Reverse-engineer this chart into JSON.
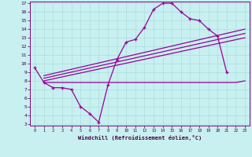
{
  "background_color": "#c8f0f0",
  "grid_color": "#aadddd",
  "line_color": "#990099",
  "xlabel": "Windchill (Refroidissement éolien,°C)",
  "xlim": [
    0,
    23
  ],
  "ylim": [
    3,
    17
  ],
  "xticks": [
    0,
    1,
    2,
    3,
    4,
    5,
    6,
    7,
    8,
    9,
    10,
    11,
    12,
    13,
    14,
    15,
    16,
    17,
    18,
    19,
    20,
    21,
    22,
    23
  ],
  "yticks": [
    3,
    4,
    5,
    6,
    7,
    8,
    9,
    10,
    11,
    12,
    13,
    14,
    15,
    16,
    17
  ],
  "line1_x": [
    0,
    1,
    2,
    3,
    4,
    5,
    6,
    7,
    8,
    9,
    10,
    11,
    12,
    13,
    14,
    15,
    16,
    17,
    18,
    19,
    20,
    21
  ],
  "line1_y": [
    9.5,
    7.8,
    7.2,
    7.2,
    7.0,
    5.0,
    4.2,
    3.2,
    7.5,
    10.5,
    12.5,
    12.8,
    14.2,
    16.3,
    17.0,
    17.0,
    16.0,
    15.2,
    15.0,
    14.0,
    13.2,
    9.0
  ],
  "line2_x": [
    1,
    22,
    23
  ],
  "line2_y": [
    7.8,
    7.8,
    8.0
  ],
  "line3_x": [
    1,
    23
  ],
  "line3_y": [
    8.0,
    13.0
  ],
  "line4_x": [
    1,
    23
  ],
  "line4_y": [
    8.3,
    13.5
  ],
  "line5_x": [
    1,
    23
  ],
  "line5_y": [
    8.6,
    14.0
  ]
}
